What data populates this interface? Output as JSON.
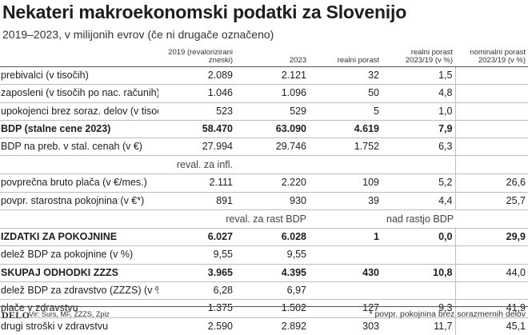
{
  "title": "Nekateri makroekonomski podatki za Slovenijo",
  "subtitle": "2019–2023, v milijonih evrov (če ni drugače označeno)",
  "headers": {
    "col1": "2019 (revalorizirani zneski)",
    "col2": "2023",
    "col3": "realni porast",
    "col4": "realni porast 2023/19 (v %)",
    "col5": "nominalni porast 2023/19 (v %)"
  },
  "rows": [
    {
      "label": "prebivalci (v tisočih)",
      "v2019": "2.089",
      "v2023": "2.121",
      "real": "32",
      "real_pct": "1,5",
      "nom_pct": ""
    },
    {
      "label": "zaposleni (v tisočih po nac. računih)",
      "v2019": "1.046",
      "v2023": "1.096",
      "real": "50",
      "real_pct": "4,8",
      "nom_pct": ""
    },
    {
      "label": "upokojenci brez soraz. delov (v tisočih)",
      "v2019": "523",
      "v2023": "529",
      "real": "5",
      "real_pct": "1,0",
      "nom_pct": ""
    },
    {
      "label": "BDP (stalne cene 2023)",
      "v2019": "58.470",
      "v2023": "63.090",
      "real": "4.619",
      "real_pct": "7,9",
      "nom_pct": ""
    },
    {
      "label": "BDP na preb. v stal. cenah (v €)",
      "v2019": "27.994",
      "v2023": "29.746",
      "real": "1.752",
      "real_pct": "6,3",
      "nom_pct": ""
    },
    {
      "label": "povprečna bruto plača (v €/mes.)",
      "v2019": "2.111",
      "v2023": "2.220",
      "real": "109",
      "real_pct": "5,2",
      "nom_pct": "26,6"
    },
    {
      "label": "povpr. starostna pokojnina (v €*)",
      "v2019": "891",
      "v2023": "930",
      "real": "39",
      "real_pct": "4,4",
      "nom_pct": "25,7"
    },
    {
      "label": "IZDATKI ZA POKOJNINE",
      "v2019": "6.027",
      "v2023": "6.028",
      "real": "1",
      "real_pct": "0,0",
      "nom_pct": "29,9"
    },
    {
      "label": "delež BDP za pokojnine (v %)",
      "v2019": "9,55",
      "v2023": "9,55",
      "real": "",
      "real_pct": "",
      "nom_pct": ""
    },
    {
      "label": "SKUPAJ ODHODKI ZZZS",
      "v2019": "3.965",
      "v2023": "4.395",
      "real": "430",
      "real_pct": "10,8",
      "nom_pct": "44,0"
    },
    {
      "label": "delež BDP za zdravstvo (ZZZS) (v %)",
      "v2019": "6,28",
      "v2023": "6,97",
      "real": "",
      "real_pct": "",
      "nom_pct": ""
    },
    {
      "label": "plače v zdravstvu",
      "v2019": "1.375",
      "v2023": "1.502",
      "real": "127",
      "real_pct": "9,3",
      "nom_pct": "41,9"
    },
    {
      "label": "drugi stroški v zdravstvu",
      "v2019": "2.590",
      "v2023": "2.892",
      "real": "303",
      "real_pct": "11,7",
      "nom_pct": "45,1"
    }
  ],
  "notes": {
    "reval_infl": "reval. za infl.",
    "reval_bdp": "reval. za rast BDP",
    "nad_bdp": "nad rastjo BDP"
  },
  "footer": {
    "logo": "DELO",
    "source": "Vir: Surs, MF, ZZZS, Zpiz",
    "footnote": "* povpr. pokojnina brez sorazmernih delov"
  }
}
